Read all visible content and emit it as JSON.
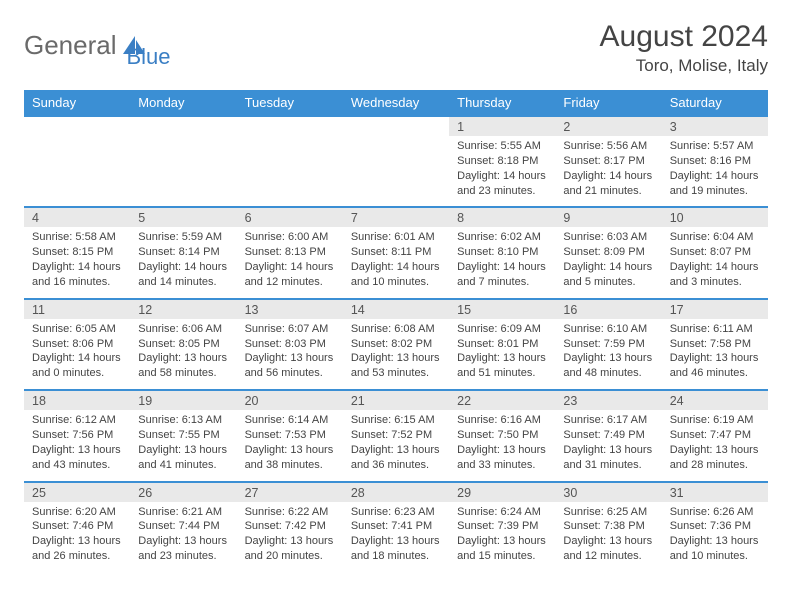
{
  "logo": {
    "part1": "General",
    "part2": "Blue"
  },
  "title": "August 2024",
  "location": "Toro, Molise, Italy",
  "colors": {
    "header_bg": "#3b8fd4",
    "header_text": "#ffffff",
    "daynum_bg": "#e9e9e9",
    "row_border": "#3b8fd4",
    "body_text": "#444444",
    "logo_gray": "#6a6a6a",
    "logo_blue": "#3b7fc4"
  },
  "day_headers": [
    "Sunday",
    "Monday",
    "Tuesday",
    "Wednesday",
    "Thursday",
    "Friday",
    "Saturday"
  ],
  "weeks": [
    [
      null,
      null,
      null,
      null,
      {
        "n": "1",
        "sunrise": "5:55 AM",
        "sunset": "8:18 PM",
        "dh": "14",
        "dm": "23"
      },
      {
        "n": "2",
        "sunrise": "5:56 AM",
        "sunset": "8:17 PM",
        "dh": "14",
        "dm": "21"
      },
      {
        "n": "3",
        "sunrise": "5:57 AM",
        "sunset": "8:16 PM",
        "dh": "14",
        "dm": "19"
      }
    ],
    [
      {
        "n": "4",
        "sunrise": "5:58 AM",
        "sunset": "8:15 PM",
        "dh": "14",
        "dm": "16"
      },
      {
        "n": "5",
        "sunrise": "5:59 AM",
        "sunset": "8:14 PM",
        "dh": "14",
        "dm": "14"
      },
      {
        "n": "6",
        "sunrise": "6:00 AM",
        "sunset": "8:13 PM",
        "dh": "14",
        "dm": "12"
      },
      {
        "n": "7",
        "sunrise": "6:01 AM",
        "sunset": "8:11 PM",
        "dh": "14",
        "dm": "10"
      },
      {
        "n": "8",
        "sunrise": "6:02 AM",
        "sunset": "8:10 PM",
        "dh": "14",
        "dm": "7"
      },
      {
        "n": "9",
        "sunrise": "6:03 AM",
        "sunset": "8:09 PM",
        "dh": "14",
        "dm": "5"
      },
      {
        "n": "10",
        "sunrise": "6:04 AM",
        "sunset": "8:07 PM",
        "dh": "14",
        "dm": "3"
      }
    ],
    [
      {
        "n": "11",
        "sunrise": "6:05 AM",
        "sunset": "8:06 PM",
        "dh": "14",
        "dm": "0"
      },
      {
        "n": "12",
        "sunrise": "6:06 AM",
        "sunset": "8:05 PM",
        "dh": "13",
        "dm": "58"
      },
      {
        "n": "13",
        "sunrise": "6:07 AM",
        "sunset": "8:03 PM",
        "dh": "13",
        "dm": "56"
      },
      {
        "n": "14",
        "sunrise": "6:08 AM",
        "sunset": "8:02 PM",
        "dh": "13",
        "dm": "53"
      },
      {
        "n": "15",
        "sunrise": "6:09 AM",
        "sunset": "8:01 PM",
        "dh": "13",
        "dm": "51"
      },
      {
        "n": "16",
        "sunrise": "6:10 AM",
        "sunset": "7:59 PM",
        "dh": "13",
        "dm": "48"
      },
      {
        "n": "17",
        "sunrise": "6:11 AM",
        "sunset": "7:58 PM",
        "dh": "13",
        "dm": "46"
      }
    ],
    [
      {
        "n": "18",
        "sunrise": "6:12 AM",
        "sunset": "7:56 PM",
        "dh": "13",
        "dm": "43"
      },
      {
        "n": "19",
        "sunrise": "6:13 AM",
        "sunset": "7:55 PM",
        "dh": "13",
        "dm": "41"
      },
      {
        "n": "20",
        "sunrise": "6:14 AM",
        "sunset": "7:53 PM",
        "dh": "13",
        "dm": "38"
      },
      {
        "n": "21",
        "sunrise": "6:15 AM",
        "sunset": "7:52 PM",
        "dh": "13",
        "dm": "36"
      },
      {
        "n": "22",
        "sunrise": "6:16 AM",
        "sunset": "7:50 PM",
        "dh": "13",
        "dm": "33"
      },
      {
        "n": "23",
        "sunrise": "6:17 AM",
        "sunset": "7:49 PM",
        "dh": "13",
        "dm": "31"
      },
      {
        "n": "24",
        "sunrise": "6:19 AM",
        "sunset": "7:47 PM",
        "dh": "13",
        "dm": "28"
      }
    ],
    [
      {
        "n": "25",
        "sunrise": "6:20 AM",
        "sunset": "7:46 PM",
        "dh": "13",
        "dm": "26"
      },
      {
        "n": "26",
        "sunrise": "6:21 AM",
        "sunset": "7:44 PM",
        "dh": "13",
        "dm": "23"
      },
      {
        "n": "27",
        "sunrise": "6:22 AM",
        "sunset": "7:42 PM",
        "dh": "13",
        "dm": "20"
      },
      {
        "n": "28",
        "sunrise": "6:23 AM",
        "sunset": "7:41 PM",
        "dh": "13",
        "dm": "18"
      },
      {
        "n": "29",
        "sunrise": "6:24 AM",
        "sunset": "7:39 PM",
        "dh": "13",
        "dm": "15"
      },
      {
        "n": "30",
        "sunrise": "6:25 AM",
        "sunset": "7:38 PM",
        "dh": "13",
        "dm": "12"
      },
      {
        "n": "31",
        "sunrise": "6:26 AM",
        "sunset": "7:36 PM",
        "dh": "13",
        "dm": "10"
      }
    ]
  ]
}
